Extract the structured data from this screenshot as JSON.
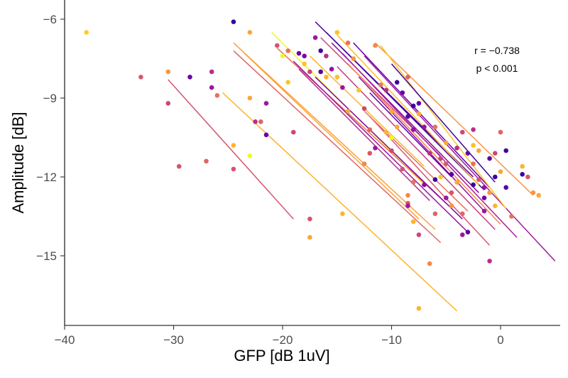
{
  "chart_data": {
    "type": "scatter",
    "xlabel": "GFP [dB 1uV]",
    "ylabel": "Amplitude [dB]",
    "xlim": [
      -40,
      5.5
    ],
    "ylim": [
      -17.8,
      -5.6
    ],
    "x_ticks": [
      -40,
      -30,
      -20,
      -10,
      0
    ],
    "x_tick_labels": [
      "−40",
      "−30",
      "−20",
      "−10",
      "0"
    ],
    "y_ticks": [
      -15,
      -12,
      -9,
      -6
    ],
    "y_tick_labels": [
      "−15",
      "−12",
      "−9",
      "−6"
    ],
    "grid": false,
    "legend": "none",
    "annotations": [
      "r = −0.738",
      "p < 0.001"
    ],
    "palette": "plasma",
    "regression_lines": [
      {
        "x": [
          -30.5,
          -19.0
        ],
        "y": [
          -8.3,
          -13.6
        ],
        "color": "#d5546e"
      },
      {
        "x": [
          -25.5,
          -4.0
        ],
        "y": [
          -8.8,
          -17.1
        ],
        "color": "#fdb32f"
      },
      {
        "x": [
          -24.5,
          -6.0
        ],
        "y": [
          -6.9,
          -14.0
        ],
        "color": "#fb9f3a"
      },
      {
        "x": [
          -24.5,
          -5.5
        ],
        "y": [
          -7.2,
          -14.5
        ],
        "color": "#e16462"
      },
      {
        "x": [
          -23.5,
          -7.5
        ],
        "y": [
          -7.3,
          -13.6
        ],
        "color": "#fca636"
      },
      {
        "x": [
          -21.0,
          -7.0
        ],
        "y": [
          -6.5,
          -12.3
        ],
        "color": "#f0f921"
      },
      {
        "x": [
          -20.5,
          -5.0
        ],
        "y": [
          -7.1,
          -13.0
        ],
        "color": "#e97158"
      },
      {
        "x": [
          -19.0,
          -3.0
        ],
        "y": [
          -7.6,
          -14.1
        ],
        "color": "#9c179e"
      },
      {
        "x": [
          -18.5,
          -6.5
        ],
        "y": [
          -7.9,
          -12.9
        ],
        "color": "#b52f8c"
      },
      {
        "x": [
          -17.5,
          -7.0
        ],
        "y": [
          -7.4,
          -11.6
        ],
        "color": "#fdb42f"
      },
      {
        "x": [
          -17.0,
          -2.5
        ],
        "y": [
          -6.1,
          -12.0
        ],
        "color": "#5402a3"
      },
      {
        "x": [
          -17.0,
          -3.5
        ],
        "y": [
          -8.2,
          -13.6
        ],
        "color": "#7e03a8"
      },
      {
        "x": [
          -16.5,
          -5.5
        ],
        "y": [
          -6.7,
          -11.2
        ],
        "color": "#cc4778"
      },
      {
        "x": [
          -16.0,
          -1.5
        ],
        "y": [
          -6.5,
          -12.5
        ],
        "color": "#3e049c"
      },
      {
        "x": [
          -15.5,
          -2.0
        ],
        "y": [
          -6.9,
          -12.6
        ],
        "color": "#8b0aa5"
      },
      {
        "x": [
          -15.0,
          -0.5
        ],
        "y": [
          -7.8,
          -14.0
        ],
        "color": "#c33d80"
      },
      {
        "x": [
          -15.0,
          -2.0
        ],
        "y": [
          -6.6,
          -12.3
        ],
        "color": "#febd2a"
      },
      {
        "x": [
          -14.5,
          1.5
        ],
        "y": [
          -7.3,
          -14.3
        ],
        "color": "#a72197"
      },
      {
        "x": [
          -14.0,
          0.0
        ],
        "y": [
          -7.7,
          -13.8
        ],
        "color": "#f48849"
      },
      {
        "x": [
          -13.5,
          -1.0
        ],
        "y": [
          -6.9,
          -12.4
        ],
        "color": "#6a00a8"
      },
      {
        "x": [
          -13.0,
          -1.5
        ],
        "y": [
          -8.2,
          -13.3
        ],
        "color": "#9512a1"
      },
      {
        "x": [
          -12.5,
          5.0
        ],
        "y": [
          -7.4,
          -15.2
        ],
        "color": "#9f1a9b"
      },
      {
        "x": [
          -12.0,
          -1.0
        ],
        "y": [
          -9.7,
          -14.6
        ],
        "color": "#d8576b"
      },
      {
        "x": [
          -11.5,
          3.0
        ],
        "y": [
          -6.9,
          -12.7
        ],
        "color": "#f89540"
      },
      {
        "x": [
          -11.0,
          0.5
        ],
        "y": [
          -7.0,
          -13.2
        ],
        "color": "#fdc328"
      },
      {
        "x": [
          -10.0,
          -0.5
        ],
        "y": [
          -7.7,
          -12.2
        ],
        "color": "#3a049a"
      },
      {
        "x": [
          -12.5,
          -3.0
        ],
        "y": [
          -9.5,
          -13.3
        ],
        "color": "#e76f5a"
      },
      {
        "x": [
          -12.0,
          -4.5
        ],
        "y": [
          -8.8,
          -12.0
        ],
        "color": "#5c01a6"
      }
    ],
    "points": [
      {
        "x": -38.0,
        "y": -6.5,
        "color": "#fcce25"
      },
      {
        "x": -33.0,
        "y": -8.2,
        "color": "#d8576b"
      },
      {
        "x": -30.5,
        "y": -8.0,
        "color": "#f89540"
      },
      {
        "x": -30.5,
        "y": -9.2,
        "color": "#cc4778"
      },
      {
        "x": -29.5,
        "y": -11.6,
        "color": "#d5546e"
      },
      {
        "x": -28.5,
        "y": -8.2,
        "color": "#6a00a8"
      },
      {
        "x": -27.0,
        "y": -11.4,
        "color": "#e16462"
      },
      {
        "x": -26.5,
        "y": -8.0,
        "color": "#b52f8c"
      },
      {
        "x": -26.5,
        "y": -8.6,
        "color": "#9c179e"
      },
      {
        "x": -26.0,
        "y": -8.9,
        "color": "#e97158"
      },
      {
        "x": -24.5,
        "y": -6.1,
        "color": "#3a049a"
      },
      {
        "x": -24.5,
        "y": -10.8,
        "color": "#fdb32f"
      },
      {
        "x": -24.5,
        "y": -11.7,
        "color": "#d5546e"
      },
      {
        "x": -23.0,
        "y": -6.5,
        "color": "#fca636"
      },
      {
        "x": -23.0,
        "y": -9.0,
        "color": "#fca636"
      },
      {
        "x": -22.5,
        "y": -9.9,
        "color": "#b52f8c"
      },
      {
        "x": -23.0,
        "y": -11.2,
        "color": "#f0f921"
      },
      {
        "x": -22.0,
        "y": -9.9,
        "color": "#e16462"
      },
      {
        "x": -21.5,
        "y": -9.2,
        "color": "#9c179e"
      },
      {
        "x": -21.5,
        "y": -10.4,
        "color": "#6a00a8"
      },
      {
        "x": -20.5,
        "y": -7.0,
        "color": "#d5546e"
      },
      {
        "x": -20.0,
        "y": -7.4,
        "color": "#f0f921"
      },
      {
        "x": -19.5,
        "y": -7.2,
        "color": "#e97158"
      },
      {
        "x": -19.5,
        "y": -8.4,
        "color": "#fdc328"
      },
      {
        "x": -19.0,
        "y": -10.3,
        "color": "#cc4778"
      },
      {
        "x": -18.5,
        "y": -7.3,
        "color": "#6a00a8"
      },
      {
        "x": -18.0,
        "y": -7.4,
        "color": "#7e03a8"
      },
      {
        "x": -18.0,
        "y": -7.7,
        "color": "#fdc328"
      },
      {
        "x": -17.5,
        "y": -8.0,
        "color": "#cc4778"
      },
      {
        "x": -17.5,
        "y": -13.6,
        "color": "#d5546e"
      },
      {
        "x": -17.5,
        "y": -14.3,
        "color": "#fca636"
      },
      {
        "x": -17.0,
        "y": -6.7,
        "color": "#9c179e"
      },
      {
        "x": -16.5,
        "y": -7.2,
        "color": "#3e049c"
      },
      {
        "x": -16.5,
        "y": -8.0,
        "color": "#5402a3"
      },
      {
        "x": -16.0,
        "y": -7.4,
        "color": "#b52f8c"
      },
      {
        "x": -16.0,
        "y": -8.2,
        "color": "#fdb42f"
      },
      {
        "x": -15.5,
        "y": -7.9,
        "color": "#9512a1"
      },
      {
        "x": -15.0,
        "y": -6.5,
        "color": "#fdc328"
      },
      {
        "x": -15.0,
        "y": -8.2,
        "color": "#febd2a"
      },
      {
        "x": -14.5,
        "y": -8.6,
        "color": "#9c179e"
      },
      {
        "x": -14.5,
        "y": -13.4,
        "color": "#fdb32f"
      },
      {
        "x": -14.0,
        "y": -6.9,
        "color": "#e97158"
      },
      {
        "x": -14.0,
        "y": -9.5,
        "color": "#fca636"
      },
      {
        "x": -13.5,
        "y": -7.5,
        "color": "#f89540"
      },
      {
        "x": -13.0,
        "y": -8.7,
        "color": "#fdc328"
      },
      {
        "x": -12.5,
        "y": -9.4,
        "color": "#cc4778"
      },
      {
        "x": -12.0,
        "y": -10.2,
        "color": "#e16462"
      },
      {
        "x": -12.5,
        "y": -11.5,
        "color": "#f48849"
      },
      {
        "x": -12.0,
        "y": -11.1,
        "color": "#d8576b"
      },
      {
        "x": -11.5,
        "y": -7.0,
        "color": "#f48849"
      },
      {
        "x": -11.5,
        "y": -10.9,
        "color": "#9c179e"
      },
      {
        "x": -11.0,
        "y": -8.5,
        "color": "#e97158"
      },
      {
        "x": -10.5,
        "y": -8.7,
        "color": "#b52f8c"
      },
      {
        "x": -10.5,
        "y": -10.3,
        "color": "#fdb42f"
      },
      {
        "x": -10.0,
        "y": -9.5,
        "color": "#fca636"
      },
      {
        "x": -10.0,
        "y": -10.5,
        "color": "#f0f921"
      },
      {
        "x": -10.0,
        "y": -11.0,
        "color": "#cc4778"
      },
      {
        "x": -9.5,
        "y": -8.4,
        "color": "#3e049c"
      },
      {
        "x": -9.5,
        "y": -10.1,
        "color": "#fca636"
      },
      {
        "x": -9.0,
        "y": -8.8,
        "color": "#6a00a8"
      },
      {
        "x": -9.0,
        "y": -11.7,
        "color": "#d5546e"
      },
      {
        "x": -8.5,
        "y": -8.2,
        "color": "#e16462"
      },
      {
        "x": -8.5,
        "y": -9.7,
        "color": "#5c01a6"
      },
      {
        "x": -8.5,
        "y": -12.7,
        "color": "#f48849"
      },
      {
        "x": -8.0,
        "y": -9.3,
        "color": "#3a049a"
      },
      {
        "x": -8.0,
        "y": -10.2,
        "color": "#9512a1"
      },
      {
        "x": -8.0,
        "y": -12.2,
        "color": "#e97158"
      },
      {
        "x": -8.5,
        "y": -13.0,
        "color": "#d8576b"
      },
      {
        "x": -8.5,
        "y": -13.1,
        "color": "#9c179e"
      },
      {
        "x": -8.0,
        "y": -13.7,
        "color": "#fdb32f"
      },
      {
        "x": -7.5,
        "y": -9.2,
        "color": "#5c01a6"
      },
      {
        "x": -7.5,
        "y": -9.6,
        "color": "#fca636"
      },
      {
        "x": -7.5,
        "y": -14.2,
        "color": "#cc4778"
      },
      {
        "x": -7.5,
        "y": -17.0,
        "color": "#fdb32f"
      },
      {
        "x": -7.0,
        "y": -10.1,
        "color": "#9512a1"
      },
      {
        "x": -7.0,
        "y": -12.3,
        "color": "#8b0aa5"
      },
      {
        "x": -6.5,
        "y": -11.1,
        "color": "#b52f8c"
      },
      {
        "x": -6.5,
        "y": -15.3,
        "color": "#f48849"
      },
      {
        "x": -6.0,
        "y": -10.1,
        "color": "#e97158"
      },
      {
        "x": -6.0,
        "y": -12.1,
        "color": "#3a049a"
      },
      {
        "x": -6.0,
        "y": -13.4,
        "color": "#e16462"
      },
      {
        "x": -5.5,
        "y": -11.3,
        "color": "#cc4778"
      },
      {
        "x": -5.5,
        "y": -12.0,
        "color": "#fdc328"
      },
      {
        "x": -5.0,
        "y": -10.7,
        "color": "#fca636"
      },
      {
        "x": -5.0,
        "y": -11.5,
        "color": "#d8576b"
      },
      {
        "x": -5.0,
        "y": -12.8,
        "color": "#9c179e"
      },
      {
        "x": -4.5,
        "y": -11.9,
        "color": "#5402a3"
      },
      {
        "x": -4.5,
        "y": -13.1,
        "color": "#f89540"
      },
      {
        "x": -4.5,
        "y": -12.6,
        "color": "#d5546e"
      },
      {
        "x": -4.0,
        "y": -10.9,
        "color": "#b52f8c"
      },
      {
        "x": -4.0,
        "y": -12.2,
        "color": "#fca636"
      },
      {
        "x": -3.5,
        "y": -10.3,
        "color": "#cc4778"
      },
      {
        "x": -3.5,
        "y": -13.4,
        "color": "#e16462"
      },
      {
        "x": -3.5,
        "y": -14.2,
        "color": "#9c179e"
      },
      {
        "x": -3.0,
        "y": -11.1,
        "color": "#6a00a8"
      },
      {
        "x": -3.0,
        "y": -14.1,
        "color": "#5c01a6"
      },
      {
        "x": -2.5,
        "y": -10.2,
        "color": "#b52f8c"
      },
      {
        "x": -2.5,
        "y": -10.8,
        "color": "#febd2a"
      },
      {
        "x": -2.5,
        "y": -11.5,
        "color": "#e97158"
      },
      {
        "x": -2.5,
        "y": -12.3,
        "color": "#3e049c"
      },
      {
        "x": -2.0,
        "y": -11.0,
        "color": "#fca636"
      },
      {
        "x": -2.0,
        "y": -12.1,
        "color": "#d8576b"
      },
      {
        "x": -1.5,
        "y": -12.4,
        "color": "#9512a1"
      },
      {
        "x": -1.5,
        "y": -12.8,
        "color": "#6a00a8"
      },
      {
        "x": -1.5,
        "y": -13.3,
        "color": "#9c179e"
      },
      {
        "x": -1.0,
        "y": -11.3,
        "color": "#5c01a6"
      },
      {
        "x": -1.0,
        "y": -12.6,
        "color": "#f89540"
      },
      {
        "x": -1.0,
        "y": -15.2,
        "color": "#b52f8c"
      },
      {
        "x": -0.5,
        "y": -11.1,
        "color": "#cc4778"
      },
      {
        "x": -0.5,
        "y": -12.0,
        "color": "#3a049a"
      },
      {
        "x": -0.5,
        "y": -13.1,
        "color": "#fdb32f"
      },
      {
        "x": 0.0,
        "y": -10.3,
        "color": "#e16462"
      },
      {
        "x": 0.0,
        "y": -11.8,
        "color": "#fca636"
      },
      {
        "x": 0.5,
        "y": -11.0,
        "color": "#3e049c"
      },
      {
        "x": 0.5,
        "y": -12.4,
        "color": "#5402a3"
      },
      {
        "x": 1.0,
        "y": -13.5,
        "color": "#e97158"
      },
      {
        "x": 2.0,
        "y": -11.6,
        "color": "#fdb42f"
      },
      {
        "x": 2.0,
        "y": -11.9,
        "color": "#3a049a"
      },
      {
        "x": 2.5,
        "y": -12.0,
        "color": "#d8576b"
      },
      {
        "x": 3.0,
        "y": -12.6,
        "color": "#f89540"
      },
      {
        "x": 3.5,
        "y": -12.7,
        "color": "#fca636"
      }
    ]
  }
}
